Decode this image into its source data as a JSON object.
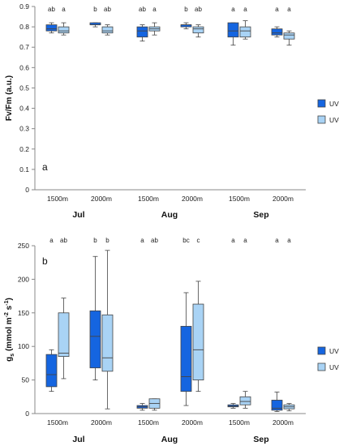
{
  "colors": {
    "uv": "#1565e0",
    "uv_minus": "#a9d3f5",
    "outline": "#444444"
  },
  "chart_data": [
    {
      "type": "boxplot",
      "panel_letter": "a",
      "ylabel": "Fv/Fm (a.u.)",
      "ylim": [
        0,
        0.9
      ],
      "yticks": [
        0,
        0.1,
        0.2,
        0.3,
        0.4,
        0.5,
        0.6,
        0.7,
        0.8,
        0.9
      ],
      "ytick_labels": [
        "0",
        "0.1",
        "0.2",
        "0.3",
        "0.4",
        "0.5",
        "0.6",
        "0.7",
        "0.8",
        "0.9"
      ],
      "legend_placement": "right",
      "categories": [
        "1500m",
        "2000m",
        "1500m",
        "2000m",
        "1500m",
        "2000m"
      ],
      "months": [
        "Jul",
        "Aug",
        "Sep"
      ],
      "series": [
        {
          "name": "UV",
          "color_key": "uv",
          "boxes": [
            {
              "min": 0.77,
              "q1": 0.78,
              "median": 0.79,
              "q3": 0.81,
              "max": 0.82
            },
            {
              "min": 0.8,
              "q1": 0.81,
              "median": 0.81,
              "q3": 0.82,
              "max": 0.82
            },
            {
              "min": 0.73,
              "q1": 0.75,
              "median": 0.78,
              "q3": 0.8,
              "max": 0.81
            },
            {
              "min": 0.79,
              "q1": 0.8,
              "median": 0.81,
              "q3": 0.81,
              "max": 0.82
            },
            {
              "min": 0.71,
              "q1": 0.75,
              "median": 0.78,
              "q3": 0.82,
              "max": 0.82
            },
            {
              "min": 0.75,
              "q1": 0.76,
              "median": 0.77,
              "q3": 0.79,
              "max": 0.8
            }
          ],
          "letters": [
            "ab",
            "b",
            "ab",
            "b",
            "a",
            "a"
          ]
        },
        {
          "name": "UV-",
          "color_key": "uv_minus",
          "boxes": [
            {
              "min": 0.76,
              "q1": 0.77,
              "median": 0.78,
              "q3": 0.8,
              "max": 0.82
            },
            {
              "min": 0.76,
              "q1": 0.77,
              "median": 0.78,
              "q3": 0.8,
              "max": 0.81
            },
            {
              "min": 0.76,
              "q1": 0.78,
              "median": 0.79,
              "q3": 0.8,
              "max": 0.82
            },
            {
              "min": 0.75,
              "q1": 0.77,
              "median": 0.79,
              "q3": 0.8,
              "max": 0.81
            },
            {
              "min": 0.74,
              "q1": 0.75,
              "median": 0.78,
              "q3": 0.8,
              "max": 0.83
            },
            {
              "min": 0.71,
              "q1": 0.74,
              "median": 0.76,
              "q3": 0.77,
              "max": 0.78
            }
          ],
          "letters": [
            "a",
            "ab",
            "a",
            "ab",
            "a",
            "a"
          ]
        }
      ]
    },
    {
      "type": "boxplot",
      "panel_letter": "b",
      "ylabel_parts": {
        "base": "g",
        "sub": "s",
        "mid": " (mmol m",
        "sup1": "-2",
        "mid2": " s",
        "sup2": "-1",
        "end": ")"
      },
      "ylim": [
        0,
        250
      ],
      "yticks": [
        0,
        50,
        100,
        150,
        200,
        250
      ],
      "ytick_labels": [
        "0",
        "50",
        "100",
        "150",
        "200",
        "250"
      ],
      "legend_placement": "right",
      "categories": [
        "1500m",
        "2000m",
        "1500m",
        "2000m",
        "1500m",
        "2000m"
      ],
      "months": [
        "Jul",
        "Aug",
        "Sep"
      ],
      "series": [
        {
          "name": "UV",
          "color_key": "uv",
          "boxes": [
            {
              "min": 33,
              "q1": 40,
              "median": 58,
              "q3": 88,
              "max": 95
            },
            {
              "min": 50,
              "q1": 68,
              "median": 115,
              "q3": 153,
              "max": 234
            },
            {
              "min": 5,
              "q1": 8,
              "median": 10,
              "q3": 12,
              "max": 15
            },
            {
              "min": 12,
              "q1": 33,
              "median": 55,
              "q3": 130,
              "max": 180
            },
            {
              "min": 8,
              "q1": 10,
              "median": 11,
              "q3": 13,
              "max": 15
            },
            {
              "min": 3,
              "q1": 5,
              "median": 8,
              "q3": 20,
              "max": 32
            }
          ],
          "letters": [
            "a",
            "b",
            "a",
            "bc",
            "a",
            "a"
          ]
        },
        {
          "name": "UV-",
          "color_key": "uv_minus",
          "boxes": [
            {
              "min": 52,
              "q1": 85,
              "median": 90,
              "q3": 150,
              "max": 172
            },
            {
              "min": 7,
              "q1": 63,
              "median": 83,
              "q3": 147,
              "max": 243
            },
            {
              "min": 5,
              "q1": 8,
              "median": 15,
              "q3": 22,
              "max": 22
            },
            {
              "min": 33,
              "q1": 50,
              "median": 95,
              "q3": 163,
              "max": 197
            },
            {
              "min": 8,
              "q1": 13,
              "median": 18,
              "q3": 25,
              "max": 33
            },
            {
              "min": 4,
              "q1": 7,
              "median": 10,
              "q3": 13,
              "max": 15
            }
          ],
          "letters": [
            "ab",
            "b",
            "ab",
            "c",
            "a",
            "a"
          ]
        }
      ]
    }
  ]
}
